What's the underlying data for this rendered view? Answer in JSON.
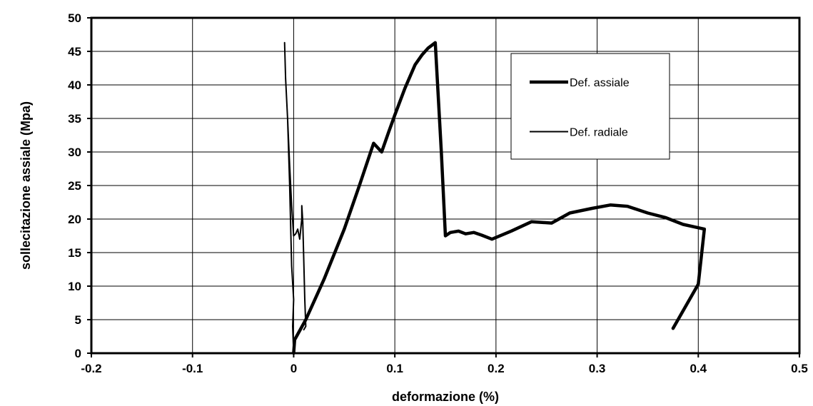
{
  "chart_data": {
    "type": "line",
    "title": "",
    "xlabel": "deformazione (%)",
    "ylabel": "sollecitazione assiale (Mpa)",
    "xlim": [
      -0.2,
      0.5
    ],
    "ylim": [
      0,
      50
    ],
    "xticks": [
      -0.2,
      -0.1,
      0,
      0.1,
      0.2,
      0.3,
      0.4,
      0.5
    ],
    "xtick_labels": [
      "-0.2",
      "-0.1",
      "0",
      "0.1",
      "0.2",
      "0.3",
      "0.4",
      "0.5"
    ],
    "yticks": [
      0,
      5,
      10,
      15,
      20,
      25,
      30,
      35,
      40,
      45,
      50
    ],
    "ytick_labels": [
      "0",
      "5",
      "10",
      "15",
      "20",
      "25",
      "30",
      "35",
      "40",
      "45",
      "50"
    ],
    "grid": true,
    "legend_position": "top-right",
    "series": [
      {
        "name": "Def. assiale",
        "line_weight": "thick",
        "x": [
          0,
          0.001,
          0.012,
          0.03,
          0.05,
          0.065,
          0.079,
          0.087,
          0.094,
          0.1,
          0.11,
          0.12,
          0.127,
          0.133,
          0.14,
          0.146,
          0.15,
          0.155,
          0.163,
          0.17,
          0.178,
          0.186,
          0.196,
          0.215,
          0.235,
          0.255,
          0.273,
          0.295,
          0.313,
          0.33,
          0.35,
          0.368,
          0.385,
          0.4,
          0.406,
          0.4,
          0.375
        ],
        "y": [
          0,
          2,
          5,
          11,
          18.5,
          25,
          31.3,
          30,
          33,
          35.5,
          39.5,
          43,
          44.5,
          45.5,
          46.3,
          30,
          17.5,
          18,
          18.2,
          17.8,
          18,
          17.6,
          17,
          18.2,
          19.6,
          19.4,
          20.9,
          21.6,
          22.1,
          21.9,
          20.9,
          20.2,
          19.2,
          18.7,
          18.5,
          10.3,
          3.7
        ]
      },
      {
        "name": "Def. radiale",
        "line_weight": "thin",
        "x": [
          0,
          -0.001,
          0.0,
          -0.002,
          -0.004,
          -0.006,
          -0.008,
          -0.009,
          -0.008,
          -0.006,
          -0.004,
          -0.002,
          0.0,
          0.002,
          0.004,
          0.006,
          0.008,
          0.008,
          0.009,
          0.011,
          0.012,
          0.01
        ],
        "y": [
          0,
          4,
          8,
          13,
          25,
          35,
          41,
          46.3,
          41,
          35,
          28,
          22,
          17.5,
          17.8,
          18.5,
          17,
          20,
          22,
          19.5,
          8,
          4,
          3.5
        ]
      }
    ]
  }
}
